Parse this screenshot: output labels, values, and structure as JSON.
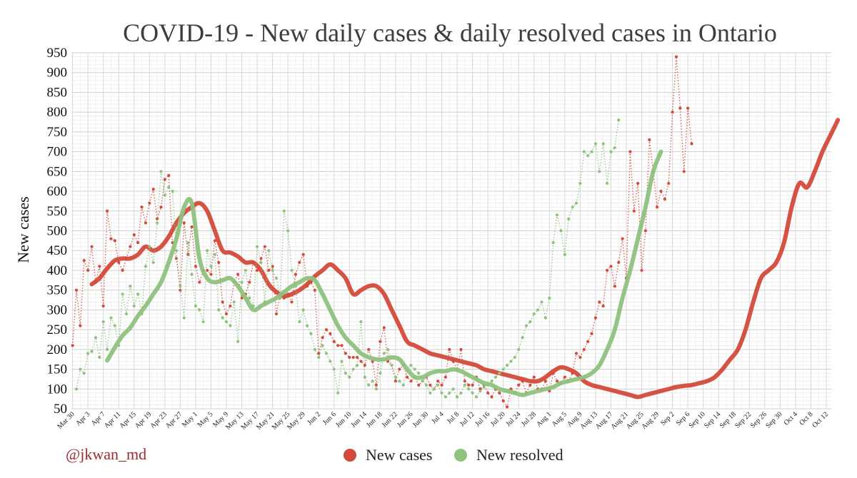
{
  "chart_data": {
    "type": "line",
    "title": "COVID-19 - New daily cases & daily resolved cases in Ontario",
    "xlabel": "",
    "ylabel": "New cases",
    "ylim": [
      50,
      950
    ],
    "yticks": [
      50,
      100,
      150,
      200,
      250,
      300,
      350,
      400,
      450,
      500,
      550,
      600,
      650,
      700,
      750,
      800,
      850,
      900,
      950
    ],
    "xticks": [
      "Mar 30",
      "Apr 3",
      "Apr 7",
      "Apr 11",
      "Apr 15",
      "Apr 19",
      "Apr 23",
      "Apr 27",
      "May 1",
      "May 5",
      "May 9",
      "May 13",
      "May 17",
      "May 21",
      "May 25",
      "May 29",
      "Jun 2",
      "Jun 6",
      "Jun 10",
      "Jun 14",
      "Jun 18",
      "Jun 22",
      "Jun 26",
      "Jun 30",
      "Jul 4",
      "Jul 8",
      "Jul 12",
      "Jul 16",
      "Jul 20",
      "Jul 24",
      "Jul 28",
      "Aug 1",
      "Aug 5",
      "Aug 9",
      "Aug 13",
      "Aug 17",
      "Aug 21",
      "Aug 25",
      "Aug 29",
      "Sep 2",
      "Sep 6",
      "Sep 10",
      "Sep 14",
      "Sep 18",
      "Sep 22",
      "Sep 26",
      "Sep 30",
      "Oct 4",
      "Oct 8",
      "Oct 12"
    ],
    "x_start": "Mar 30",
    "grid": true,
    "legend_position": "bottom-center",
    "credit": "@jkwan_md",
    "series": [
      {
        "name": "New cases",
        "color": "#d44a3a",
        "daily_start_day": 0,
        "daily": [
          210,
          350,
          260,
          425,
          400,
          460,
          370,
          410,
          310,
          550,
          480,
          475,
          420,
          400,
          430,
          460,
          490,
          470,
          560,
          520,
          570,
          605,
          530,
          560,
          630,
          640,
          470,
          430,
          350,
          520,
          440,
          510,
          410,
          370,
          400,
          400,
          390,
          475,
          420,
          320,
          290,
          310,
          370,
          390,
          330,
          340,
          370,
          420,
          400,
          430,
          460,
          400,
          410,
          290,
          340,
          330,
          340,
          320,
          390,
          420,
          440,
          360,
          370,
          350,
          190,
          230,
          250,
          240,
          220,
          210,
          210,
          190,
          180,
          180,
          180,
          170,
          160,
          200,
          170,
          110,
          220,
          255,
          170,
          160,
          120,
          150,
          160,
          130,
          120,
          130,
          110,
          120,
          130,
          110,
          100,
          120,
          110,
          130,
          200,
          170,
          150,
          200,
          120,
          110,
          110,
          130,
          100,
          110,
          90,
          80,
          100,
          90,
          70,
          55,
          100,
          90,
          110,
          120,
          90,
          110,
          130,
          100,
          100,
          120,
          95,
          140,
          120,
          115,
          130,
          120,
          140,
          190,
          180,
          200,
          220,
          240,
          280,
          320,
          310,
          400,
          410,
          360,
          420,
          480,
          380,
          700,
          550,
          620,
          400,
          500,
          730,
          650,
          560,
          600,
          580,
          620,
          800,
          940,
          810,
          650,
          810,
          720
        ],
        "avg_start_day": 5,
        "avg": [
          365,
          380,
          405,
          425,
          430,
          430,
          440,
          460,
          450,
          460,
          485,
          520,
          545,
          560,
          570,
          550,
          500,
          450,
          445,
          435,
          420,
          420,
          400,
          365,
          345,
          335,
          340,
          350,
          365,
          385,
          400,
          415,
          400,
          380,
          340,
          350,
          360,
          360,
          340,
          300,
          260,
          220,
          210,
          200,
          190,
          185,
          180,
          175,
          170,
          165,
          160,
          150,
          145,
          140,
          135,
          130,
          125,
          120,
          120,
          130,
          145,
          155,
          150,
          140,
          120,
          110,
          105,
          100,
          95,
          90,
          85,
          80,
          85,
          90,
          95,
          100,
          105,
          108,
          110,
          115,
          120,
          130,
          150,
          175,
          200,
          250,
          320,
          380,
          400,
          420,
          470,
          560,
          620,
          610,
          650,
          700,
          740,
          780
        ]
      },
      {
        "name": "New resolved",
        "color": "#8ec27e",
        "daily_start_day": 1,
        "daily": [
          100,
          150,
          140,
          190,
          195,
          230,
          180,
          270,
          200,
          280,
          260,
          210,
          340,
          290,
          360,
          310,
          340,
          290,
          410,
          460,
          420,
          520,
          650,
          590,
          610,
          600,
          450,
          360,
          280,
          470,
          390,
          310,
          300,
          270,
          450,
          410,
          440,
          300,
          280,
          270,
          260,
          320,
          220,
          370,
          400,
          330,
          310,
          460,
          420,
          320,
          450,
          400,
          380,
          330,
          550,
          500,
          400,
          360,
          270,
          300,
          260,
          240,
          200,
          180,
          210,
          190,
          170,
          150,
          90,
          170,
          140,
          130,
          150,
          160,
          270,
          130,
          110,
          120,
          100,
          140,
          190,
          200,
          160,
          130,
          120,
          110,
          150,
          160,
          150,
          140,
          120,
          110,
          90,
          100,
          110,
          90,
          80,
          90,
          100,
          80,
          90,
          110,
          100,
          90,
          80,
          95,
          105,
          110,
          120,
          130,
          140,
          150,
          160,
          170,
          180,
          200,
          230,
          260,
          270,
          290,
          300,
          320,
          280,
          330,
          470,
          540,
          500,
          440,
          530,
          560,
          570,
          620,
          700,
          690,
          700,
          720,
          650,
          720,
          620,
          700,
          710,
          780
        ],
        "avg_start_day": 9,
        "avg": [
          172,
          205,
          235,
          255,
          285,
          310,
          340,
          370,
          420,
          480,
          560,
          570,
          430,
          380,
          370,
          375,
          380,
          360,
          330,
          300,
          310,
          320,
          330,
          345,
          360,
          370,
          380,
          375,
          340,
          300,
          260,
          230,
          210,
          190,
          180,
          175,
          175,
          180,
          175,
          150,
          130,
          130,
          140,
          145,
          145,
          150,
          145,
          135,
          125,
          115,
          110,
          100,
          95,
          90,
          85,
          90,
          95,
          100,
          105,
          115,
          120,
          125,
          130,
          140,
          160,
          200,
          250,
          330,
          400,
          480,
          560,
          650,
          700
        ]
      }
    ]
  }
}
